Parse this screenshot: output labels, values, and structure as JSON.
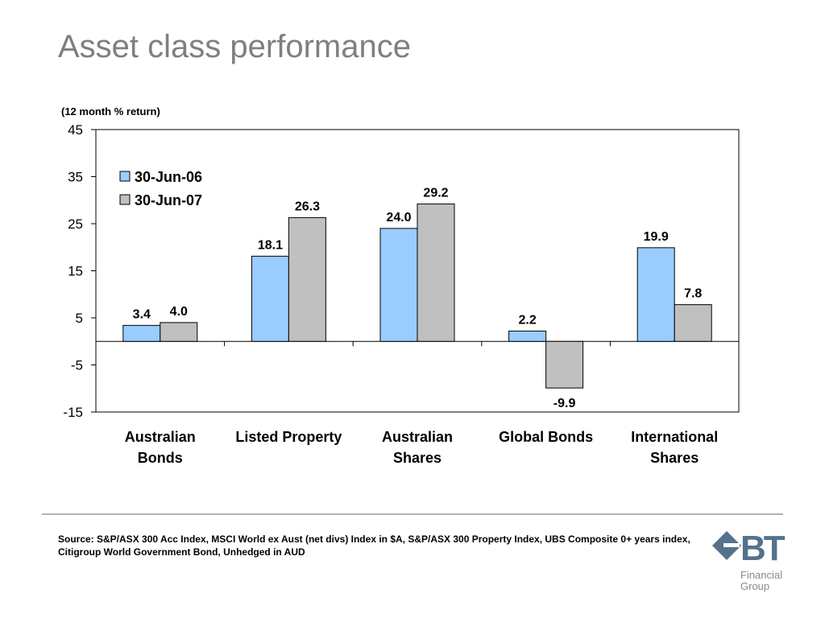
{
  "page": {
    "title": "Asset class performance",
    "source_note": "Source: S&P/ASX 300 Acc Index, MSCI World ex Aust (net divs) Index in $A, S&P/ASX 300 Property Index, UBS Composite 0+ years index, Citigroup World Government Bond, Unhedged in AUD"
  },
  "logo": {
    "brand": "BT",
    "line1": "Financial",
    "line2": "Group",
    "colors": {
      "mark": "#54728c"
    }
  },
  "chart_data": {
    "type": "bar",
    "title": "",
    "ylabel": "(12 month % return)",
    "xlabel": "",
    "categories": [
      "Australian\nBonds",
      "Listed Property",
      "Australian\nShares",
      "Global Bonds",
      "International\nShares"
    ],
    "series": [
      {
        "name": "30-Jun-06",
        "values": [
          3.4,
          18.1,
          24.0,
          2.2,
          19.9
        ],
        "labels": [
          "3.4",
          "18.1",
          "24.0",
          "2.2",
          "19.9"
        ],
        "color": "#99ccff"
      },
      {
        "name": "30-Jun-07",
        "values": [
          4.0,
          26.3,
          29.2,
          -9.9,
          7.8
        ],
        "labels": [
          "4.0",
          "26.3",
          "29.2",
          "-9.9",
          "7.8"
        ],
        "color": "#c0c0c0"
      }
    ],
    "ylim": [
      -15,
      45
    ],
    "yticks": [
      45,
      35,
      25,
      15,
      5,
      -5,
      -15
    ],
    "grid": false,
    "legend_position": "top-left"
  }
}
